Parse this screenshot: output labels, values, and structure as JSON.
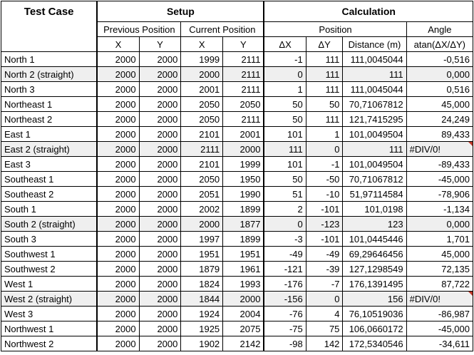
{
  "header": {
    "test_case": "Test Case",
    "setup": "Setup",
    "calculation": "Calculation",
    "previous_position": "Previous Position",
    "current_position": "Current Position",
    "position": "Position",
    "angle": "Angle",
    "x": "X",
    "y": "Y",
    "dx": "ΔX",
    "dy": "ΔY",
    "distance": "Distance (m)",
    "atan": "atan(ΔX/ΔY)"
  },
  "rows": [
    {
      "name": "North 1",
      "px": "2000",
      "py": "2000",
      "cx": "1999",
      "cy": "2111",
      "dx": "-1",
      "dy": "111",
      "dist": "111,0045044",
      "angle": "-0,516",
      "shade": false,
      "err": false
    },
    {
      "name": "North 2 (straight)",
      "px": "2000",
      "py": "2000",
      "cx": "2000",
      "cy": "2111",
      "dx": "0",
      "dy": "111",
      "dist": "111",
      "angle": "0,000",
      "shade": true,
      "err": false
    },
    {
      "name": "North 3",
      "px": "2000",
      "py": "2000",
      "cx": "2001",
      "cy": "2111",
      "dx": "1",
      "dy": "111",
      "dist": "111,0045044",
      "angle": "0,516",
      "shade": false,
      "err": false
    },
    {
      "name": "Northeast 1",
      "px": "2000",
      "py": "2000",
      "cx": "2050",
      "cy": "2050",
      "dx": "50",
      "dy": "50",
      "dist": "70,71067812",
      "angle": "45,000",
      "shade": false,
      "err": false
    },
    {
      "name": "Northeast 2",
      "px": "2000",
      "py": "2000",
      "cx": "2050",
      "cy": "2111",
      "dx": "50",
      "dy": "111",
      "dist": "121,7415295",
      "angle": "24,249",
      "shade": false,
      "err": false
    },
    {
      "name": "East 1",
      "px": "2000",
      "py": "2000",
      "cx": "2101",
      "cy": "2001",
      "dx": "101",
      "dy": "1",
      "dist": "101,0049504",
      "angle": "89,433",
      "shade": false,
      "err": false
    },
    {
      "name": "East 2 (straight)",
      "px": "2000",
      "py": "2000",
      "cx": "2111",
      "cy": "2000",
      "dx": "111",
      "dy": "0",
      "dist": "111",
      "angle": "#DIV/0!",
      "shade": true,
      "err": true
    },
    {
      "name": "East 3",
      "px": "2000",
      "py": "2000",
      "cx": "2101",
      "cy": "1999",
      "dx": "101",
      "dy": "-1",
      "dist": "101,0049504",
      "angle": "-89,433",
      "shade": false,
      "err": false
    },
    {
      "name": "Southeast 1",
      "px": "2000",
      "py": "2000",
      "cx": "2050",
      "cy": "1950",
      "dx": "50",
      "dy": "-50",
      "dist": "70,71067812",
      "angle": "-45,000",
      "shade": false,
      "err": false
    },
    {
      "name": "Southeast 2",
      "px": "2000",
      "py": "2000",
      "cx": "2051",
      "cy": "1990",
      "dx": "51",
      "dy": "-10",
      "dist": "51,97114584",
      "angle": "-78,906",
      "shade": false,
      "err": false
    },
    {
      "name": "South 1",
      "px": "2000",
      "py": "2000",
      "cx": "2002",
      "cy": "1899",
      "dx": "2",
      "dy": "-101",
      "dist": "101,0198",
      "angle": "-1,134",
      "shade": false,
      "err": false
    },
    {
      "name": "South 2 (straight)",
      "px": "2000",
      "py": "2000",
      "cx": "2000",
      "cy": "1877",
      "dx": "0",
      "dy": "-123",
      "dist": "123",
      "angle": "0,000",
      "shade": true,
      "err": false
    },
    {
      "name": "South 3",
      "px": "2000",
      "py": "2000",
      "cx": "1997",
      "cy": "1899",
      "dx": "-3",
      "dy": "-101",
      "dist": "101,0445446",
      "angle": "1,701",
      "shade": false,
      "err": false
    },
    {
      "name": "Southwest 1",
      "px": "2000",
      "py": "2000",
      "cx": "1951",
      "cy": "1951",
      "dx": "-49",
      "dy": "-49",
      "dist": "69,29646456",
      "angle": "45,000",
      "shade": false,
      "err": false
    },
    {
      "name": "Southwest 2",
      "px": "2000",
      "py": "2000",
      "cx": "1879",
      "cy": "1961",
      "dx": "-121",
      "dy": "-39",
      "dist": "127,1298549",
      "angle": "72,135",
      "shade": false,
      "err": false
    },
    {
      "name": "West 1",
      "px": "2000",
      "py": "2000",
      "cx": "1824",
      "cy": "1993",
      "dx": "-176",
      "dy": "-7",
      "dist": "176,1391495",
      "angle": "87,722",
      "shade": false,
      "err": false
    },
    {
      "name": "West 2 (straight)",
      "px": "2000",
      "py": "2000",
      "cx": "1844",
      "cy": "2000",
      "dx": "-156",
      "dy": "0",
      "dist": "156",
      "angle": "#DIV/0!",
      "shade": true,
      "err": true
    },
    {
      "name": "West 3",
      "px": "2000",
      "py": "2000",
      "cx": "1924",
      "cy": "2004",
      "dx": "-76",
      "dy": "4",
      "dist": "76,10519036",
      "angle": "-86,987",
      "shade": false,
      "err": false
    },
    {
      "name": "Northwest 1",
      "px": "2000",
      "py": "2000",
      "cx": "1925",
      "cy": "2075",
      "dx": "-75",
      "dy": "75",
      "dist": "106,0660172",
      "angle": "-45,000",
      "shade": false,
      "err": false
    },
    {
      "name": "Northwest 2",
      "px": "2000",
      "py": "2000",
      "cx": "1902",
      "cy": "2142",
      "dx": "-98",
      "dy": "142",
      "dist": "172,5340546",
      "angle": "-34,611",
      "shade": false,
      "err": false
    }
  ],
  "colors": {
    "shaded_row": "#efefef",
    "error_marker": "#c0392b",
    "grid": "#000000"
  }
}
